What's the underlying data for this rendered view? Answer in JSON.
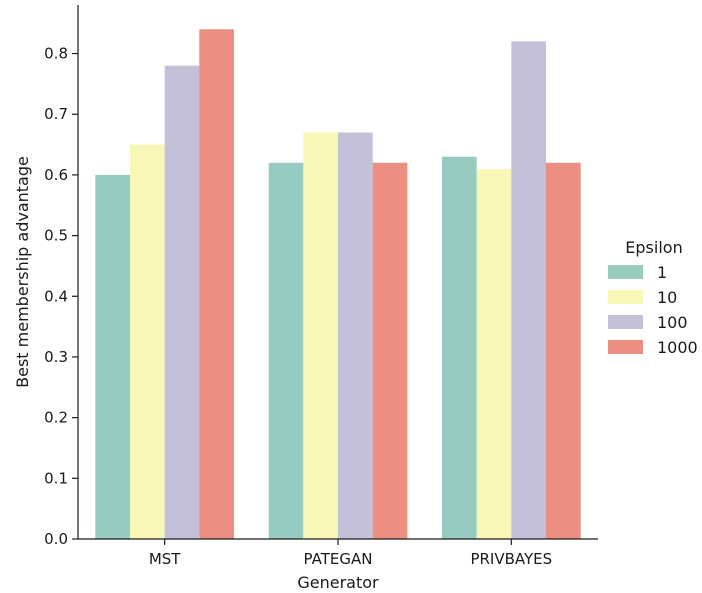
{
  "chart_data": {
    "type": "bar",
    "title": "",
    "xlabel": "Generator",
    "ylabel": "Best membership advantage",
    "categories": [
      "MST",
      "PATEGAN",
      "PRIVBAYES"
    ],
    "ylim": [
      0,
      0.88
    ],
    "yticks": [
      "0.0",
      "0.1",
      "0.2",
      "0.3",
      "0.4",
      "0.5",
      "0.6",
      "0.7",
      "0.8"
    ],
    "grid": false,
    "legend": {
      "title": "Epsilon",
      "placement": "right"
    },
    "series": [
      {
        "name": "1",
        "color": "#97cbc0",
        "values": [
          0.6,
          0.62,
          0.63
        ]
      },
      {
        "name": "10",
        "color": "#f8f7b8",
        "values": [
          0.65,
          0.67,
          0.61
        ]
      },
      {
        "name": "100",
        "color": "#c3c0d8",
        "values": [
          0.78,
          0.67,
          0.82
        ]
      },
      {
        "name": "1000",
        "color": "#ea8f82",
        "values": [
          0.84,
          0.62,
          0.62
        ]
      }
    ]
  }
}
